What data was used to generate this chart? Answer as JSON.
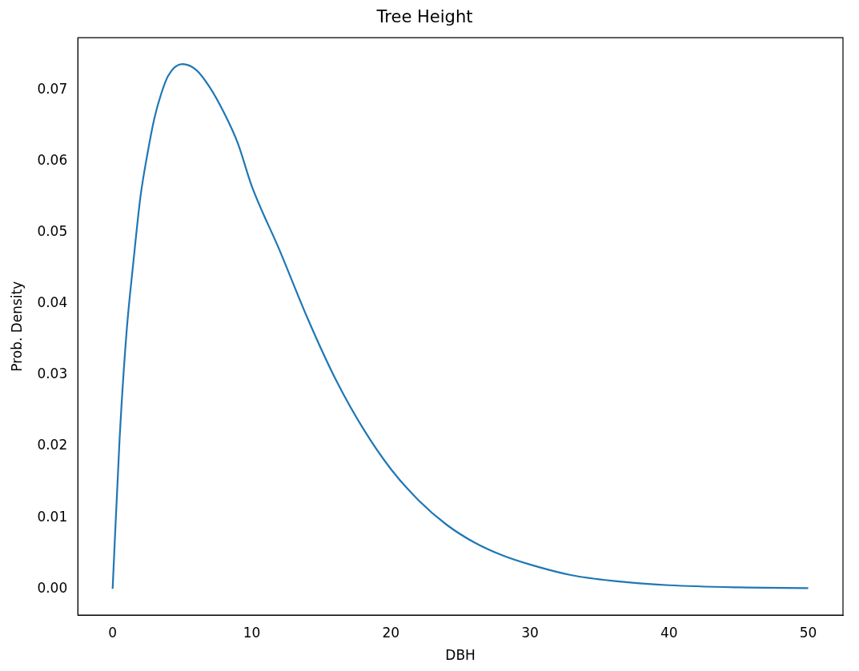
{
  "chart_data": {
    "type": "line",
    "title": "Tree Height",
    "xlabel": "DBH",
    "ylabel": "Prob. Density",
    "x": [
      0,
      0.5,
      1,
      1.5,
      2,
      2.5,
      3,
      3.5,
      4,
      5,
      6,
      7,
      8,
      9,
      10,
      12,
      14,
      16,
      18,
      20,
      22,
      24,
      26,
      28,
      30,
      33,
      36,
      40,
      45,
      50
    ],
    "series": [
      {
        "color": "#1f77b4",
        "values": [
          0,
          0.021,
          0.036,
          0.046,
          0.055,
          0.061,
          0.066,
          0.0695,
          0.072,
          0.0736,
          0.0728,
          0.0703,
          0.0668,
          0.0625,
          0.0565,
          0.0475,
          0.038,
          0.0295,
          0.0225,
          0.0168,
          0.0124,
          0.009,
          0.0065,
          0.0047,
          0.0034,
          0.0019,
          0.0011,
          0.0005,
          0.0002,
          0.0001
        ]
      }
    ],
    "xlim": [
      -2.5,
      52.5
    ],
    "xticks": [
      0,
      10,
      20,
      30,
      40,
      50
    ],
    "ylim": [
      -0.0037,
      0.0773
    ],
    "yticks": [
      {
        "value": 0,
        "label": "0.00"
      },
      {
        "value": 0.01,
        "label": "0.01"
      },
      {
        "value": 0.02,
        "label": "0.02"
      },
      {
        "value": 0.03,
        "label": "0.03"
      },
      {
        "value": 0.04,
        "label": "0.04"
      },
      {
        "value": 0.05,
        "label": "0.05"
      },
      {
        "value": 0.06,
        "label": "0.06"
      },
      {
        "value": 0.07,
        "label": "0.07"
      }
    ],
    "grid": false,
    "legend": false,
    "marker": "none",
    "line_style": "solid"
  }
}
